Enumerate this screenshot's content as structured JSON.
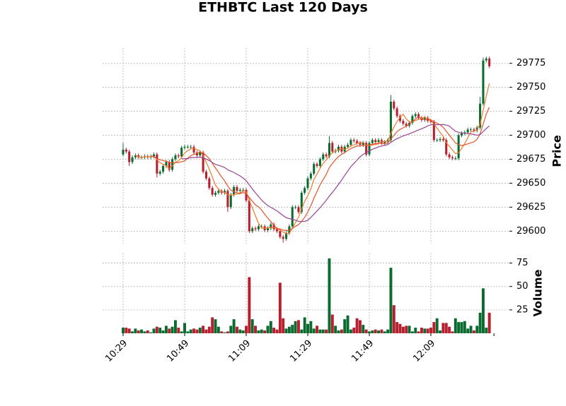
{
  "chart_data": {
    "type": "candlestick",
    "title": "ETHBTC Last 120 Days",
    "categories": [
      "10:29",
      null,
      null,
      null,
      null,
      null,
      null,
      null,
      null,
      null,
      null,
      null,
      null,
      null,
      null,
      null,
      null,
      null,
      null,
      null,
      "10:49",
      null,
      null,
      null,
      null,
      null,
      null,
      null,
      null,
      null,
      null,
      null,
      null,
      null,
      null,
      null,
      null,
      null,
      null,
      null,
      "11:09",
      null,
      null,
      null,
      null,
      null,
      null,
      null,
      null,
      null,
      null,
      null,
      null,
      null,
      null,
      null,
      null,
      null,
      null,
      null,
      "11:29",
      null,
      null,
      null,
      null,
      null,
      null,
      null,
      null,
      null,
      null,
      null,
      null,
      null,
      null,
      null,
      null,
      null,
      null,
      null,
      "11:49",
      null,
      null,
      null,
      null,
      null,
      null,
      null,
      null,
      null,
      null,
      null,
      null,
      null,
      null,
      null,
      null,
      null,
      null,
      null,
      "12:09",
      null,
      null,
      null,
      null,
      null,
      null,
      null,
      null,
      null,
      null,
      null,
      null,
      null,
      null,
      null,
      null,
      null,
      null,
      null
    ],
    "open": [
      29680,
      29685,
      29683,
      29672,
      29677,
      29679,
      29677,
      29677,
      29678,
      29677,
      29678,
      29680,
      29660,
      29662,
      29668,
      29672,
      29664,
      29675,
      29679,
      29678,
      29687,
      29688,
      29688,
      29688,
      29682,
      29679,
      29682,
      29662,
      29655,
      29645,
      29638,
      29640,
      29642,
      29640,
      29642,
      29625,
      29638,
      29646,
      29642,
      29643,
      29643,
      29632,
      29600,
      29603,
      29602,
      29605,
      29605,
      29601,
      29603,
      29607,
      29602,
      29600,
      29594,
      29592,
      29598,
      29605,
      29625,
      29625,
      29620,
      29640,
      29645,
      29655,
      29660,
      29670,
      29668,
      29675,
      29680,
      29678,
      29692,
      29683,
      29684,
      29688,
      29683,
      29688,
      29690,
      29695,
      29694,
      29692,
      29690,
      29692,
      29680,
      29692,
      29695,
      29693,
      29695,
      29692,
      29693,
      29695,
      29735,
      29728,
      29720,
      29715,
      29712,
      29710,
      29713,
      29720,
      29722,
      29718,
      29716,
      29718,
      29715,
      29714,
      29695,
      29695,
      29696,
      29695,
      29680,
      29677,
      29676,
      29676,
      29700,
      29702,
      29703,
      29706,
      29706,
      29705,
      29708,
      29733,
      29778,
      29780
    ],
    "high": [
      29692,
      29687,
      29685,
      29679,
      29681,
      29681,
      29679,
      29680,
      29680,
      29680,
      29682,
      29682,
      29664,
      29670,
      29674,
      29674,
      29677,
      29681,
      29681,
      29689,
      29690,
      29690,
      29690,
      29690,
      29684,
      29684,
      29684,
      29664,
      29657,
      29647,
      29642,
      29644,
      29644,
      29644,
      29644,
      29640,
      29648,
      29648,
      29645,
      29645,
      29645,
      29634,
      29605,
      29605,
      29607,
      29607,
      29607,
      29605,
      29609,
      29609,
      29604,
      29602,
      29596,
      29600,
      29607,
      29627,
      29627,
      29627,
      29642,
      29647,
      29657,
      29662,
      29672,
      29672,
      29677,
      29682,
      29682,
      29699,
      29694,
      29686,
      29690,
      29690,
      29690,
      29692,
      29697,
      29697,
      29696,
      29694,
      29694,
      29694,
      29694,
      29697,
      29697,
      29697,
      29697,
      29695,
      29697,
      29742,
      29737,
      29730,
      29722,
      29717,
      29714,
      29715,
      29722,
      29724,
      29724,
      29720,
      29720,
      29720,
      29717,
      29716,
      29697,
      29698,
      29698,
      29697,
      29682,
      29679,
      29678,
      29702,
      29704,
      29705,
      29708,
      29708,
      29708,
      29710,
      29740,
      29781,
      29782,
      29782
    ],
    "low": [
      29678,
      29681,
      29668,
      29670,
      29675,
      29675,
      29675,
      29675,
      29675,
      29675,
      29676,
      29656,
      29658,
      29660,
      29666,
      29662,
      29662,
      29673,
      29676,
      29676,
      29685,
      29686,
      29686,
      29680,
      29677,
      29677,
      29660,
      29653,
      29643,
      29636,
      29636,
      29638,
      29638,
      29638,
      29620,
      29623,
      29636,
      29640,
      29640,
      29641,
      29630,
      29598,
      29598,
      29600,
      29600,
      29603,
      29599,
      29599,
      29601,
      29600,
      29598,
      29592,
      29588,
      29590,
      29596,
      29603,
      29623,
      29618,
      29618,
      29638,
      29643,
      29653,
      29658,
      29666,
      29666,
      29673,
      29676,
      29676,
      29681,
      29681,
      29682,
      29681,
      29681,
      29686,
      29688,
      29692,
      29690,
      29688,
      29688,
      29678,
      29678,
      29690,
      29691,
      29691,
      29690,
      29690,
      29691,
      29693,
      29726,
      29718,
      29713,
      29710,
      29708,
      29708,
      29711,
      29718,
      29716,
      29714,
      29714,
      29713,
      29712,
      29693,
      29693,
      29693,
      29693,
      29678,
      29675,
      29674,
      29674,
      29674,
      29698,
      29700,
      29701,
      29704,
      29703,
      29703,
      29706,
      29731,
      29776,
      29770
    ],
    "close": [
      29685,
      29683,
      29672,
      29677,
      29679,
      29677,
      29677,
      29678,
      29677,
      29678,
      29680,
      29660,
      29662,
      29668,
      29672,
      29664,
      29675,
      29679,
      29678,
      29687,
      29688,
      29688,
      29688,
      29682,
      29679,
      29682,
      29662,
      29655,
      29645,
      29638,
      29640,
      29642,
      29640,
      29642,
      29625,
      29638,
      29646,
      29642,
      29643,
      29643,
      29632,
      29600,
      29603,
      29602,
      29605,
      29605,
      29601,
      29603,
      29607,
      29602,
      29600,
      29594,
      29592,
      29598,
      29605,
      29625,
      29625,
      29620,
      29640,
      29645,
      29655,
      29660,
      29670,
      29668,
      29675,
      29680,
      29678,
      29692,
      29683,
      29684,
      29688,
      29683,
      29688,
      29690,
      29695,
      29694,
      29692,
      29690,
      29692,
      29680,
      29692,
      29695,
      29693,
      29695,
      29692,
      29693,
      29695,
      29735,
      29728,
      29720,
      29715,
      29712,
      29710,
      29713,
      29720,
      29722,
      29718,
      29716,
      29718,
      29715,
      29714,
      29695,
      29695,
      29696,
      29695,
      29680,
      29677,
      29676,
      29676,
      29700,
      29702,
      29703,
      29706,
      29706,
      29705,
      29708,
      29733,
      29778,
      29780,
      29772
    ],
    "volume": [
      6,
      6,
      5,
      2,
      5,
      3,
      4,
      2,
      3,
      1,
      5,
      7,
      6,
      3,
      8,
      5,
      7,
      14,
      6,
      2,
      11,
      2,
      4,
      5,
      4,
      6,
      8,
      4,
      7,
      17,
      15,
      7,
      2,
      1,
      2,
      8,
      15,
      7,
      4,
      3,
      8,
      60,
      15,
      8,
      3,
      4,
      3,
      8,
      13,
      6,
      4,
      54,
      16,
      5,
      7,
      9,
      13,
      14,
      4,
      17,
      10,
      13,
      5,
      8,
      4,
      4,
      4,
      80,
      20,
      8,
      3,
      4,
      15,
      19,
      4,
      6,
      16,
      14,
      9,
      4,
      2,
      3,
      4,
      3,
      4,
      2,
      4,
      70,
      30,
      12,
      10,
      7,
      8,
      8,
      2,
      6,
      2,
      6,
      5,
      5,
      6,
      12,
      16,
      3,
      11,
      11,
      7,
      2,
      16,
      12,
      12,
      13,
      5,
      8,
      3,
      8,
      22,
      48,
      6,
      22
    ],
    "up_color": "#0b6b2f",
    "down_color": "#b51f2e",
    "ylabel": "Price",
    "ylim": [
      29587,
      29791
    ],
    "yticks": [
      29600,
      29625,
      29650,
      29675,
      29700,
      29725,
      29750,
      29775
    ],
    "volume_label": "Volume",
    "volume_ylim": [
      0,
      86
    ],
    "volume_yticks": [
      25,
      50,
      75
    ],
    "grid": true,
    "mav": [
      {
        "window": 5,
        "color": "#f07a2c"
      },
      {
        "window": 10,
        "color": "#e0552a"
      },
      {
        "window": 20,
        "color": "#9b4494"
      }
    ]
  }
}
